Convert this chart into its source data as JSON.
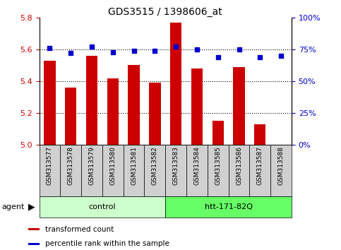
{
  "title": "GDS3515 / 1398606_at",
  "samples": [
    "GSM313577",
    "GSM313578",
    "GSM313579",
    "GSM313580",
    "GSM313581",
    "GSM313582",
    "GSM313583",
    "GSM313584",
    "GSM313585",
    "GSM313586",
    "GSM313587",
    "GSM313588"
  ],
  "bar_values": [
    5.53,
    5.36,
    5.56,
    5.42,
    5.5,
    5.39,
    5.77,
    5.48,
    5.15,
    5.49,
    5.13,
    5.0
  ],
  "dot_values": [
    76,
    72,
    77,
    73,
    74,
    74,
    77,
    75,
    69,
    75,
    69,
    70
  ],
  "bar_base": 5.0,
  "bar_color": "#cc0000",
  "dot_color": "#0000cc",
  "ylim_left": [
    5.0,
    5.8
  ],
  "ylim_right": [
    0,
    100
  ],
  "yticks_left": [
    5.0,
    5.2,
    5.4,
    5.6,
    5.8
  ],
  "yticks_right": [
    0,
    25,
    50,
    75,
    100
  ],
  "ytick_labels_right": [
    "0%",
    "25%",
    "50%",
    "75%",
    "100%"
  ],
  "grid_values": [
    5.2,
    5.4,
    5.6
  ],
  "groups": [
    {
      "label": "control",
      "start": 0,
      "end": 6,
      "color": "#ccffcc"
    },
    {
      "label": "htt-171-82Q",
      "start": 6,
      "end": 12,
      "color": "#66ff66"
    }
  ],
  "agent_label": "agent",
  "legend_bar_label": "transformed count",
  "legend_dot_label": "percentile rank within the sample",
  "tick_label_color_left": "#cc0000",
  "tick_label_color_right": "#0000cc",
  "background_color": "#ffffff",
  "plot_bg_color": "#ffffff",
  "sample_bg_color": "#d0d0d0"
}
